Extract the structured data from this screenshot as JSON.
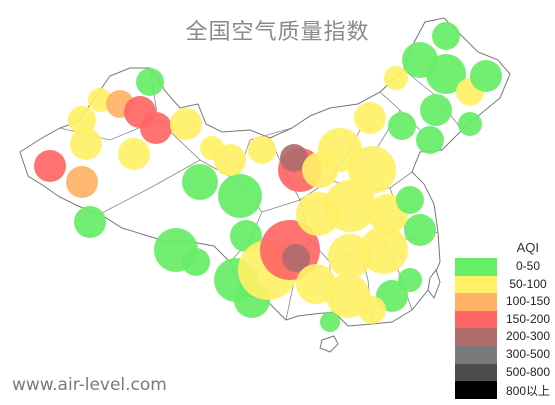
{
  "title": "全国空气质量指数",
  "watermark": "www.air-level.com",
  "legend": {
    "title": "AQI",
    "items": [
      {
        "label": "0-50",
        "color": "#66ee66"
      },
      {
        "label": "50-100",
        "color": "#fff066"
      },
      {
        "label": "100-150",
        "color": "#ffb266"
      },
      {
        "label": "150-200",
        "color": "#ff6666"
      },
      {
        "label": "200-300",
        "color": "#b06b6b"
      },
      {
        "label": "300-500",
        "color": "#7a7a7a"
      },
      {
        "label": "500-800",
        "color": "#4d4d4d"
      },
      {
        "label": "800以上",
        "color": "#000000"
      }
    ]
  },
  "colors": {
    "good": "#66ee66",
    "moderate": "#fff066",
    "sensitive": "#ffb266",
    "unhealthy": "#ff6666",
    "very_unhealthy": "#b06b6b",
    "border": "#777777"
  }
}
